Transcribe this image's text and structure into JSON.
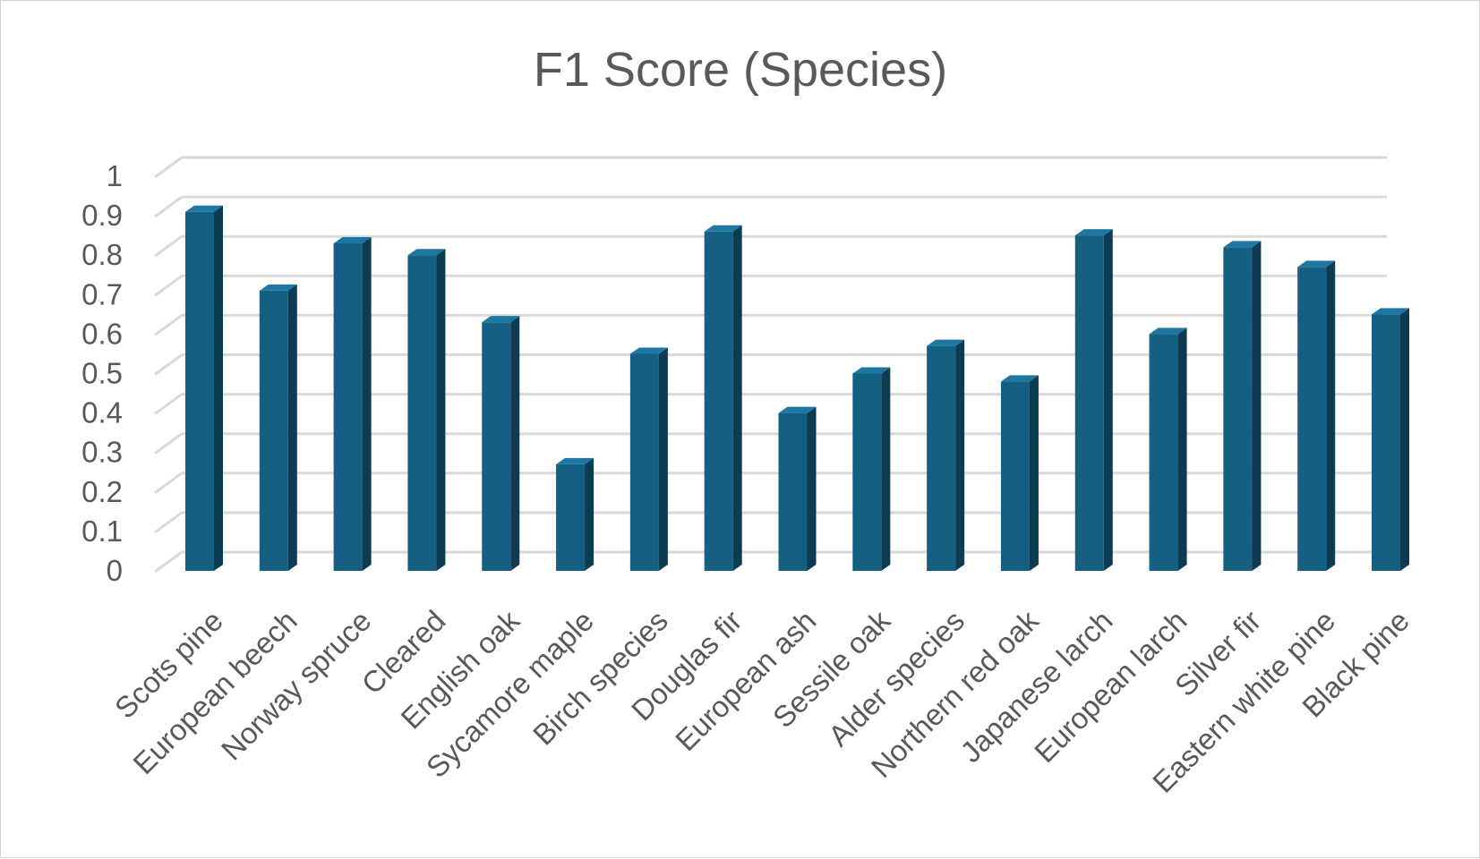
{
  "chart_data": {
    "type": "bar",
    "title": "F1 Score (Species)",
    "xlabel": "",
    "ylabel": "",
    "ylim": [
      0,
      1
    ],
    "yticks": [
      "0",
      "0.1",
      "0.2",
      "0.3",
      "0.4",
      "0.5",
      "0.6",
      "0.7",
      "0.8",
      "0.9",
      "1"
    ],
    "grid": true,
    "legend": "none",
    "style": "3d-column",
    "categories": [
      "Scots pine",
      "European beech",
      "Norway spruce",
      "Cleared",
      "English oak",
      "Sycamore maple",
      "Birch species",
      "Douglas fir",
      "European ash",
      "Sessile oak",
      "Alder species",
      "Northern red oak",
      "Japanese larch",
      "European larch",
      "Silver fir",
      "Eastern white pine",
      "Black pine"
    ],
    "values": [
      0.91,
      0.71,
      0.83,
      0.8,
      0.63,
      0.27,
      0.55,
      0.86,
      0.4,
      0.5,
      0.57,
      0.48,
      0.85,
      0.6,
      0.82,
      0.77,
      0.65
    ],
    "colors": {
      "bar_front": "#155F82",
      "bar_side": "#0C3B52",
      "bar_top": "#1E77A2",
      "grid": "#D9D9D9",
      "text": "#595959"
    }
  }
}
